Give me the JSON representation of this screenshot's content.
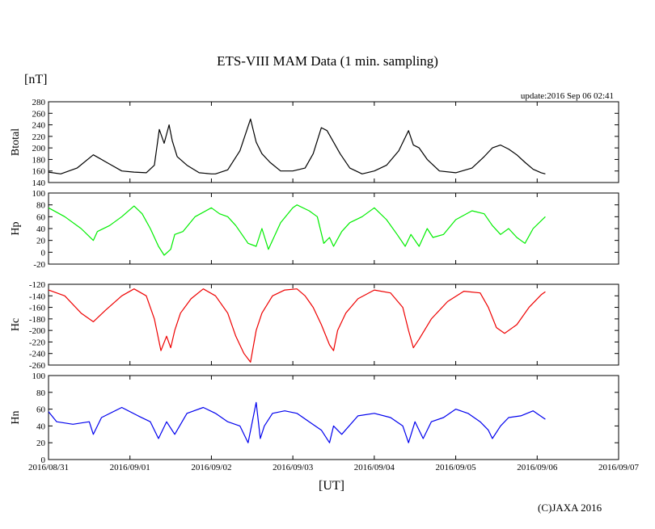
{
  "title": "ETS-VIII MAM Data (1 min. sampling)",
  "unit_label": "[nT]",
  "update_label": "update:2016 Sep 06 02:41",
  "x_axis_label": "[UT]",
  "copyright": "(C)JAXA 2016",
  "chart_data": [
    {
      "type": "line",
      "name": "Btotal",
      "ylabel": "Btotal",
      "color": "#000000",
      "ylim": [
        140,
        280
      ],
      "yticks": [
        140,
        160,
        180,
        200,
        220,
        240,
        260,
        280
      ],
      "xlim": [
        0,
        7
      ],
      "x": [
        0,
        0.15,
        0.35,
        0.55,
        0.75,
        0.9,
        1.05,
        1.2,
        1.3,
        1.36,
        1.42,
        1.48,
        1.52,
        1.58,
        1.7,
        1.85,
        2.0,
        2.05,
        2.2,
        2.35,
        2.48,
        2.55,
        2.62,
        2.72,
        2.85,
        3.0,
        3.15,
        3.25,
        3.35,
        3.42,
        3.48,
        3.58,
        3.7,
        3.85,
        4.0,
        4.15,
        4.3,
        4.42,
        4.48,
        4.55,
        4.65,
        4.8,
        5.0,
        5.2,
        5.35,
        5.45,
        5.55,
        5.65,
        5.75,
        5.85,
        5.95,
        6.05,
        6.1
      ],
      "values": [
        158,
        155,
        165,
        188,
        172,
        160,
        158,
        157,
        170,
        232,
        208,
        240,
        212,
        185,
        170,
        157,
        155,
        155,
        162,
        195,
        250,
        210,
        190,
        175,
        160,
        160,
        165,
        190,
        235,
        230,
        215,
        190,
        165,
        155,
        160,
        170,
        195,
        230,
        205,
        200,
        180,
        160,
        157,
        165,
        185,
        200,
        205,
        198,
        188,
        175,
        163,
        157,
        155
      ]
    },
    {
      "type": "line",
      "name": "Hp",
      "ylabel": "Hp",
      "color": "#00ee00",
      "ylim": [
        -20,
        100
      ],
      "yticks": [
        -20,
        0,
        20,
        40,
        60,
        80,
        100
      ],
      "xlim": [
        0,
        7
      ],
      "x": [
        0,
        0.2,
        0.4,
        0.55,
        0.6,
        0.75,
        0.9,
        1.05,
        1.15,
        1.25,
        1.35,
        1.42,
        1.5,
        1.55,
        1.65,
        1.8,
        2.0,
        2.1,
        2.2,
        2.3,
        2.45,
        2.55,
        2.62,
        2.7,
        2.85,
        3.0,
        3.05,
        3.2,
        3.3,
        3.38,
        3.45,
        3.5,
        3.6,
        3.7,
        3.85,
        4.0,
        4.15,
        4.28,
        4.38,
        4.45,
        4.55,
        4.65,
        4.72,
        4.85,
        5.0,
        5.2,
        5.35,
        5.45,
        5.55,
        5.65,
        5.75,
        5.85,
        5.95,
        6.1
      ],
      "values": [
        75,
        60,
        40,
        20,
        35,
        45,
        60,
        78,
        65,
        40,
        10,
        -5,
        5,
        30,
        35,
        60,
        75,
        65,
        60,
        45,
        15,
        10,
        40,
        5,
        50,
        75,
        80,
        70,
        60,
        15,
        25,
        10,
        35,
        50,
        60,
        75,
        55,
        30,
        10,
        30,
        10,
        40,
        25,
        30,
        55,
        70,
        65,
        45,
        30,
        40,
        25,
        15,
        40,
        60
      ]
    },
    {
      "type": "line",
      "name": "Hc",
      "ylabel": "Hc",
      "color": "#ee0000",
      "ylim": [
        -260,
        -120
      ],
      "yticks": [
        -260,
        -240,
        -220,
        -200,
        -180,
        -160,
        -140,
        -120
      ],
      "xlim": [
        0,
        7
      ],
      "x": [
        0,
        0.2,
        0.4,
        0.55,
        0.7,
        0.9,
        1.05,
        1.2,
        1.3,
        1.38,
        1.45,
        1.5,
        1.55,
        1.62,
        1.75,
        1.9,
        2.05,
        2.2,
        2.3,
        2.4,
        2.48,
        2.55,
        2.62,
        2.75,
        2.9,
        3.05,
        3.15,
        3.25,
        3.35,
        3.45,
        3.5,
        3.55,
        3.65,
        3.8,
        4.0,
        4.2,
        4.35,
        4.42,
        4.48,
        4.55,
        4.7,
        4.9,
        5.1,
        5.3,
        5.4,
        5.5,
        5.6,
        5.75,
        5.9,
        6.05,
        6.1
      ],
      "values": [
        -130,
        -140,
        -170,
        -185,
        -165,
        -140,
        -128,
        -140,
        -180,
        -235,
        -210,
        -230,
        -200,
        -170,
        -145,
        -128,
        -140,
        -170,
        -210,
        -240,
        -255,
        -200,
        -170,
        -140,
        -130,
        -128,
        -140,
        -160,
        -190,
        -225,
        -235,
        -200,
        -170,
        -145,
        -130,
        -135,
        -160,
        -200,
        -230,
        -215,
        -180,
        -150,
        -132,
        -135,
        -160,
        -195,
        -205,
        -190,
        -160,
        -138,
        -133
      ]
    },
    {
      "type": "line",
      "name": "Hn",
      "ylabel": "Hn",
      "color": "#0000ee",
      "ylim": [
        0,
        100
      ],
      "yticks": [
        0,
        20,
        40,
        60,
        80,
        100
      ],
      "xlim": [
        0,
        7
      ],
      "x": [
        0,
        0.1,
        0.3,
        0.5,
        0.55,
        0.65,
        0.9,
        1.1,
        1.25,
        1.35,
        1.45,
        1.55,
        1.7,
        1.9,
        2.05,
        2.2,
        2.35,
        2.45,
        2.55,
        2.6,
        2.65,
        2.75,
        2.9,
        3.05,
        3.2,
        3.35,
        3.45,
        3.5,
        3.6,
        3.8,
        4.0,
        4.2,
        4.35,
        4.42,
        4.5,
        4.6,
        4.7,
        4.85,
        5.0,
        5.15,
        5.3,
        5.4,
        5.45,
        5.55,
        5.65,
        5.8,
        5.95,
        6.1
      ],
      "values": [
        57,
        45,
        42,
        45,
        30,
        50,
        62,
        52,
        45,
        25,
        45,
        30,
        55,
        62,
        55,
        45,
        40,
        20,
        68,
        25,
        40,
        55,
        58,
        55,
        45,
        35,
        20,
        40,
        30,
        52,
        55,
        50,
        40,
        20,
        45,
        25,
        45,
        50,
        60,
        55,
        45,
        35,
        25,
        40,
        50,
        52,
        58,
        48
      ]
    }
  ],
  "x_tick_labels": [
    "2016/08/31",
    "2016/09/01",
    "2016/09/02",
    "2016/09/03",
    "2016/09/04",
    "2016/09/05",
    "2016/09/06",
    "2016/09/07"
  ]
}
